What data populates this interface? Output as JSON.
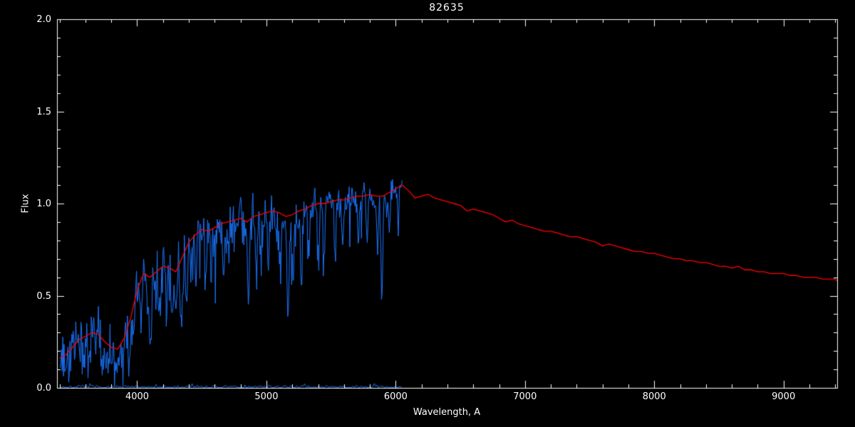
{
  "chart_data": {
    "type": "line",
    "title": "82635",
    "xlabel": "Wavelength, A",
    "ylabel": "Flux",
    "xlim": [
      3380,
      9415
    ],
    "ylim": [
      0.0,
      2.0
    ],
    "xtick_values": [
      4000,
      5000,
      6000,
      7000,
      8000,
      9000
    ],
    "xtick_labels": [
      "4000",
      "5000",
      "6000",
      "7000",
      "8000",
      "9000"
    ],
    "ytick_values": [
      0.0,
      0.5,
      1.0,
      1.5,
      2.0
    ],
    "ytick_labels": [
      "0.0",
      "0.5",
      "1.0",
      "1.5",
      "2.0"
    ],
    "x_minor_tick_interval": 200,
    "y_minor_tick_interval": 0.1,
    "grid": false,
    "legend": null,
    "colors": {
      "background": "#000000",
      "axes": "#ffffff",
      "observed": "#1a75ff",
      "model": "#ff0000"
    },
    "series": [
      {
        "name": "observed-spectrum",
        "type": "noisy-line",
        "color_key": "observed",
        "continuum": "model-spectrum",
        "x_start": 3405,
        "x_end": 6050,
        "x_step": 5,
        "noise": {
          "seed": 1337,
          "sigma_start": 0.085,
          "sigma_end": 0.033,
          "spike_probability": 0.06,
          "spike_max_depth": 0.3
        },
        "absorption_lines": [
          [
            3580,
            0.3,
            8
          ],
          [
            3620,
            0.25,
            8
          ],
          [
            3680,
            0.3,
            8
          ],
          [
            3735,
            0.4,
            10
          ],
          [
            3760,
            0.35,
            8
          ],
          [
            3800,
            0.35,
            8
          ],
          [
            3835,
            0.5,
            8
          ],
          [
            3890,
            0.55,
            8
          ],
          [
            3933,
            0.6,
            7
          ],
          [
            3968,
            0.55,
            7
          ],
          [
            4030,
            0.35,
            8
          ],
          [
            4077,
            0.3,
            6
          ],
          [
            4101,
            0.55,
            8
          ],
          [
            4144,
            0.3,
            6
          ],
          [
            4172,
            0.35,
            7
          ],
          [
            4226,
            0.5,
            6
          ],
          [
            4271,
            0.35,
            6
          ],
          [
            4300,
            0.45,
            10
          ],
          [
            4340,
            0.6,
            7
          ],
          [
            4383,
            0.45,
            6
          ],
          [
            4415,
            0.3,
            6
          ],
          [
            4455,
            0.35,
            6
          ],
          [
            4530,
            0.3,
            7
          ],
          [
            4571,
            0.25,
            6
          ],
          [
            4668,
            0.35,
            7
          ],
          [
            4703,
            0.25,
            6
          ],
          [
            4861,
            0.6,
            7
          ],
          [
            4920,
            0.35,
            6
          ],
          [
            4957,
            0.3,
            6
          ],
          [
            5015,
            0.4,
            6
          ],
          [
            5110,
            0.3,
            6
          ],
          [
            5167,
            0.55,
            8
          ],
          [
            5207,
            0.4,
            6
          ],
          [
            5270,
            0.45,
            7
          ],
          [
            5328,
            0.3,
            6
          ],
          [
            5405,
            0.35,
            6
          ],
          [
            5446,
            0.3,
            6
          ],
          [
            5530,
            0.3,
            6
          ],
          [
            5590,
            0.25,
            6
          ],
          [
            5711,
            0.25,
            6
          ],
          [
            5780,
            0.2,
            6
          ],
          [
            5860,
            0.3,
            6
          ],
          [
            5893,
            0.55,
            7
          ],
          [
            5950,
            0.2,
            6
          ],
          [
            6020,
            0.2,
            6
          ]
        ]
      },
      {
        "name": "model-spectrum",
        "type": "line",
        "color_key": "model",
        "points": [
          [
            3400,
            0.16
          ],
          [
            3450,
            0.18
          ],
          [
            3500,
            0.22
          ],
          [
            3550,
            0.26
          ],
          [
            3600,
            0.28
          ],
          [
            3650,
            0.3
          ],
          [
            3700,
            0.29
          ],
          [
            3750,
            0.25
          ],
          [
            3800,
            0.22
          ],
          [
            3850,
            0.21
          ],
          [
            3900,
            0.27
          ],
          [
            3950,
            0.38
          ],
          [
            4000,
            0.53
          ],
          [
            4050,
            0.62
          ],
          [
            4100,
            0.6
          ],
          [
            4150,
            0.63
          ],
          [
            4200,
            0.66
          ],
          [
            4250,
            0.65
          ],
          [
            4300,
            0.63
          ],
          [
            4350,
            0.71
          ],
          [
            4400,
            0.79
          ],
          [
            4450,
            0.83
          ],
          [
            4500,
            0.86
          ],
          [
            4550,
            0.85
          ],
          [
            4600,
            0.87
          ],
          [
            4650,
            0.89
          ],
          [
            4700,
            0.9
          ],
          [
            4750,
            0.91
          ],
          [
            4800,
            0.92
          ],
          [
            4850,
            0.9
          ],
          [
            4900,
            0.93
          ],
          [
            4950,
            0.94
          ],
          [
            5000,
            0.95
          ],
          [
            5050,
            0.96
          ],
          [
            5100,
            0.95
          ],
          [
            5150,
            0.93
          ],
          [
            5200,
            0.94
          ],
          [
            5250,
            0.96
          ],
          [
            5300,
            0.97
          ],
          [
            5350,
            0.99
          ],
          [
            5400,
            1.0
          ],
          [
            5450,
            1.0
          ],
          [
            5500,
            1.01
          ],
          [
            5550,
            1.02
          ],
          [
            5600,
            1.02
          ],
          [
            5650,
            1.03
          ],
          [
            5700,
            1.04
          ],
          [
            5750,
            1.04
          ],
          [
            5800,
            1.05
          ],
          [
            5850,
            1.04
          ],
          [
            5900,
            1.04
          ],
          [
            5950,
            1.06
          ],
          [
            6000,
            1.08
          ],
          [
            6050,
            1.1
          ],
          [
            6100,
            1.07
          ],
          [
            6150,
            1.03
          ],
          [
            6200,
            1.04
          ],
          [
            6250,
            1.05
          ],
          [
            6300,
            1.03
          ],
          [
            6350,
            1.02
          ],
          [
            6400,
            1.01
          ],
          [
            6450,
            1.0
          ],
          [
            6500,
            0.99
          ],
          [
            6550,
            0.96
          ],
          [
            6600,
            0.97
          ],
          [
            6650,
            0.96
          ],
          [
            6700,
            0.95
          ],
          [
            6750,
            0.94
          ],
          [
            6800,
            0.92
          ],
          [
            6850,
            0.9
          ],
          [
            6900,
            0.91
          ],
          [
            6950,
            0.89
          ],
          [
            7000,
            0.88
          ],
          [
            7050,
            0.87
          ],
          [
            7100,
            0.86
          ],
          [
            7150,
            0.85
          ],
          [
            7200,
            0.85
          ],
          [
            7250,
            0.84
          ],
          [
            7300,
            0.83
          ],
          [
            7350,
            0.82
          ],
          [
            7400,
            0.82
          ],
          [
            7450,
            0.81
          ],
          [
            7500,
            0.8
          ],
          [
            7550,
            0.79
          ],
          [
            7600,
            0.77
          ],
          [
            7650,
            0.78
          ],
          [
            7700,
            0.77
          ],
          [
            7750,
            0.76
          ],
          [
            7800,
            0.75
          ],
          [
            7850,
            0.74
          ],
          [
            7900,
            0.74
          ],
          [
            7950,
            0.73
          ],
          [
            8000,
            0.73
          ],
          [
            8050,
            0.72
          ],
          [
            8100,
            0.71
          ],
          [
            8150,
            0.7
          ],
          [
            8200,
            0.7
          ],
          [
            8250,
            0.69
          ],
          [
            8300,
            0.69
          ],
          [
            8350,
            0.68
          ],
          [
            8400,
            0.68
          ],
          [
            8450,
            0.67
          ],
          [
            8500,
            0.66
          ],
          [
            8550,
            0.66
          ],
          [
            8600,
            0.65
          ],
          [
            8650,
            0.66
          ],
          [
            8700,
            0.64
          ],
          [
            8750,
            0.64
          ],
          [
            8800,
            0.63
          ],
          [
            8850,
            0.63
          ],
          [
            8900,
            0.62
          ],
          [
            8950,
            0.62
          ],
          [
            9000,
            0.62
          ],
          [
            9050,
            0.61
          ],
          [
            9100,
            0.61
          ],
          [
            9150,
            0.6
          ],
          [
            9200,
            0.6
          ],
          [
            9250,
            0.6
          ],
          [
            9300,
            0.59
          ],
          [
            9350,
            0.59
          ],
          [
            9400,
            0.59
          ],
          [
            9415,
            0.58
          ]
        ]
      },
      {
        "name": "error-spectrum",
        "type": "noisy-baseline",
        "color_key": "observed",
        "x_start": 3405,
        "x_end": 6050,
        "x_step": 10,
        "baseline": 0.005,
        "noise": {
          "seed": 7,
          "sigma": 0.004,
          "spike_probability": 0.05,
          "spike_max": 0.018
        }
      }
    ]
  }
}
